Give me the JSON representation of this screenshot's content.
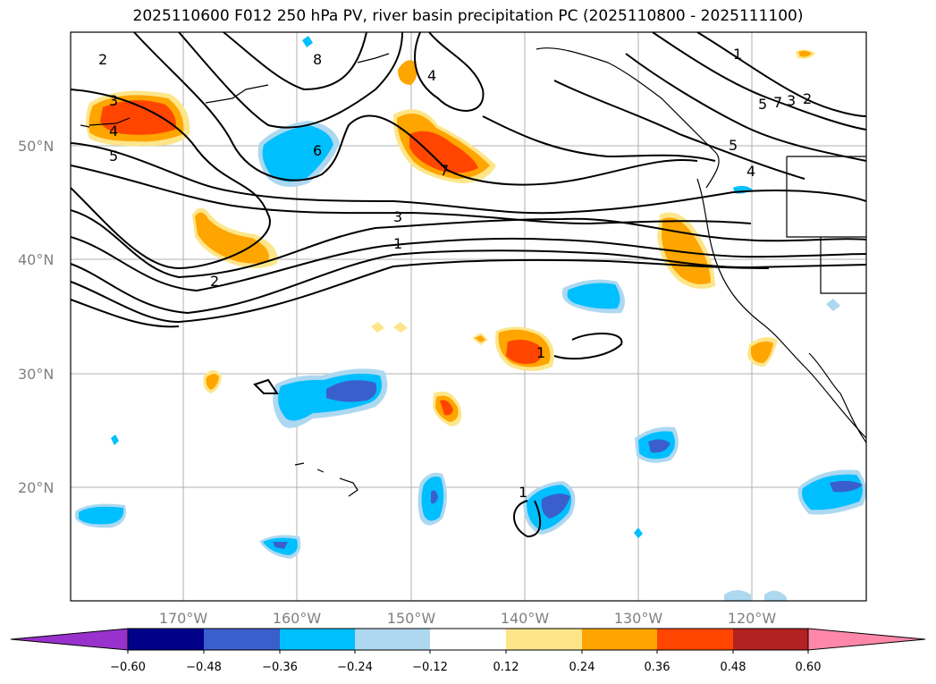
{
  "title": "2025110600 F012 250 hPa PV, river basin precipitation PC (2025110800 - 2025111100)",
  "lat_labels": [
    "50°N",
    "40°N",
    "30°N",
    "20°N"
  ],
  "lon_labels": [
    "170°W",
    "160°W",
    "150°W",
    "140°W",
    "130°W",
    "120°W"
  ],
  "contour_labels": [
    "2",
    "8",
    "3",
    "4",
    "5",
    "6",
    "7",
    "3",
    "1",
    "2",
    "1",
    "4",
    "5",
    "7",
    "2",
    "3",
    "1",
    "1",
    "5",
    "4"
  ],
  "colorbar": {
    "ticks": [
      "−0.60",
      "−0.48",
      "−0.36",
      "−0.24",
      "−0.12",
      "0.12",
      "0.24",
      "0.36",
      "0.48",
      "0.60"
    ],
    "colors": [
      "#9932cc",
      "#00008b",
      "#3a5fcd",
      "#00bfff",
      "#add8f0",
      "#ffffff",
      "#fde68a",
      "#ffa500",
      "#ff4500",
      "#b22222",
      "#ff88aa"
    ]
  },
  "colors": {
    "neg_light": "#add8f0",
    "neg_mid": "#00bfff",
    "neg_dark": "#3a5fcd",
    "pos_light": "#fde68a",
    "pos_mid": "#ffa500",
    "pos_dark": "#ff4500"
  }
}
